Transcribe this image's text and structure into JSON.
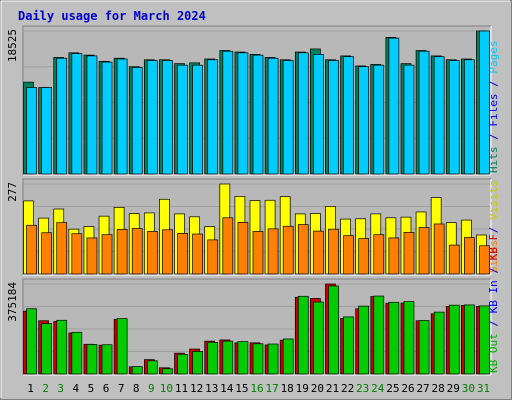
{
  "chart_data": {
    "type": "bar",
    "title": "Daily usage for March 2024",
    "categories": [
      "1",
      "2",
      "3",
      "4",
      "5",
      "6",
      "7",
      "8",
      "9",
      "10",
      "11",
      "12",
      "13",
      "14",
      "15",
      "16",
      "17",
      "18",
      "19",
      "20",
      "21",
      "22",
      "23",
      "24",
      "25",
      "26",
      "27",
      "28",
      "29",
      "30",
      "31"
    ],
    "weekend_days": [
      "2",
      "3",
      "9",
      "10",
      "16",
      "17",
      "23",
      "24",
      "30",
      "31"
    ],
    "colors": {
      "background": "#c0c0c0",
      "plot_bg": "#b8b8b8",
      "title": "#0000cc",
      "hits": "#00805c",
      "files": "#00ccff",
      "pages": "#00ccff",
      "visits": "#ffff00",
      "sites": "#ff8000",
      "kb_in": "#00cc00",
      "kb_out": "#cc0000",
      "weekday_label": "#000000",
      "weekend_label": "#008000"
    },
    "panels": [
      {
        "name": "hits-panel",
        "max_label": "18525",
        "ymax": 18525,
        "legend": [
          {
            "text": "Pages",
            "color": "#00ccff"
          },
          {
            "text": " / ",
            "color": "#0000cc"
          },
          {
            "text": "Files",
            "color": "#0000ff"
          },
          {
            "text": " / ",
            "color": "#0000cc"
          },
          {
            "text": "Hits",
            "color": "#00805c"
          }
        ],
        "series": [
          {
            "name": "Hits",
            "values": [
              11900,
              11200,
              15100,
              15700,
              15400,
              14600,
              15000,
              13900,
              14800,
              14800,
              14300,
              14400,
              14900,
              16000,
              15800,
              15500,
              15100,
              14800,
              15800,
              16200,
              14800,
              15300,
              14000,
              14200,
              17700,
              14300,
              16000,
              15300,
              14800,
              14900,
              18525
            ]
          },
          {
            "name": "Files",
            "values": [
              11200,
              11200,
              15000,
              15600,
              15300,
              14500,
              14900,
              13800,
              14700,
              14700,
              14100,
              14100,
              14800,
              15900,
              15700,
              15400,
              15000,
              14700,
              15700,
              15500,
              14700,
              15200,
              13900,
              14100,
              17600,
              14100,
              15900,
              15200,
              14700,
              14800,
              18525
            ]
          }
        ]
      },
      {
        "name": "visits-panel",
        "max_label": "277",
        "ymax": 277,
        "legend": [
          {
            "text": "Visits",
            "color": "#cccc00"
          },
          {
            "text": " / ",
            "color": "#0000cc"
          },
          {
            "text": "Sites",
            "color": "#ff8000"
          }
        ],
        "series": [
          {
            "name": "Visits",
            "values": [
              225,
              172,
              200,
              138,
              146,
              178,
              205,
              186,
              188,
              230,
              185,
              176,
              146,
              277,
              239,
              226,
              227,
              238,
              185,
              186,
              208,
              169,
              170,
              185,
              173,
              175,
              191,
              235,
              158,
              166,
              120
            ]
          },
          {
            "name": "Sites",
            "values": [
              150,
              127,
              158,
              124,
              111,
              121,
              137,
              140,
              131,
              136,
              125,
              123,
              105,
              173,
              159,
              131,
              139,
              147,
              152,
              132,
              138,
              118,
              109,
              121,
              111,
              128,
              143,
              154,
              89,
              112,
              87
            ]
          }
        ]
      },
      {
        "name": "kbytes-panel",
        "max_label": "375184",
        "ymax": 375184,
        "legend": [
          {
            "text": "KB F",
            "color": "#cc0000"
          },
          {
            "text": " / ",
            "color": "#0000cc"
          },
          {
            "text": "KB In",
            "color": "#0000ff"
          },
          {
            "text": " / ",
            "color": "#0000cc"
          },
          {
            "text": "KB Out",
            "color": "#00aa00"
          }
        ],
        "series": [
          {
            "name": "KB In",
            "values": [
              262000,
              222000,
              219000,
              171000,
              124000,
              120000,
              228000,
              30000,
              60000,
              26000,
              87000,
              104000,
              137000,
              142000,
              130000,
              130000,
              121000,
              141000,
              320000,
              315000,
              375184,
              232000,
              272000,
              323000,
              295000,
              296000,
              222000,
              251000,
              282000,
              286000,
              282000
            ]
          },
          {
            "name": "KB Out",
            "values": [
              272000,
              210000,
              224000,
              174000,
              123000,
              122000,
              231000,
              31000,
              55000,
              22000,
              82000,
              94000,
              132000,
              137000,
              135000,
              126000,
              125000,
              146000,
              324000,
              300000,
              367000,
              238000,
              283000,
              325000,
              299000,
              302000,
              223000,
              258000,
              287000,
              288000,
              284000
            ]
          }
        ]
      }
    ]
  }
}
